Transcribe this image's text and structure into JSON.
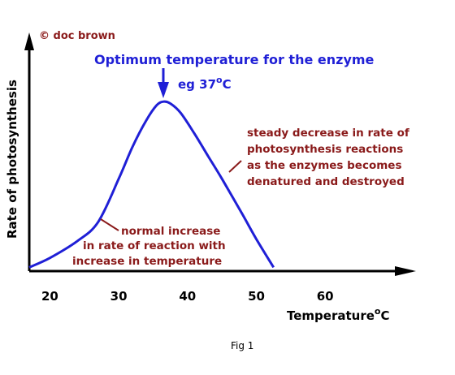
{
  "chart_data": {
    "type": "line",
    "credit": "© doc brown",
    "title": "Optimum temperature for the enzyme",
    "peak_label": "eg 37",
    "peak_label_unit": "C",
    "ylabel": "Rate of photosynthesis",
    "xlabel": "Temperature",
    "xlabel_unit": "C",
    "degree_symbol": "o",
    "x_ticks": [
      "20",
      "30",
      "40",
      "50",
      "60"
    ],
    "xlim": [
      17,
      70
    ],
    "ylim": [
      0,
      1
    ],
    "y_scale": "relative (no printed values)",
    "series": [
      {
        "color": "#1f1fd6",
        "x": [
          17,
          20,
          24,
          27,
          30,
          32,
          34,
          35.5,
          36.5,
          37.5,
          39,
          41,
          43,
          45,
          48,
          50,
          52.5
        ],
        "y": [
          0.02,
          0.07,
          0.16,
          0.26,
          0.49,
          0.66,
          0.8,
          0.88,
          0.9,
          0.89,
          0.84,
          0.73,
          0.61,
          0.49,
          0.3,
          0.17,
          0.02
        ]
      }
    ],
    "annotations": {
      "decrease": [
        "steady decrease in rate of",
        "photosynthesis reactions",
        "as the enzymes becomes",
        "denatured and destroyed"
      ],
      "increase": [
        "normal increase",
        "in rate of reaction with",
        "increase in temperature"
      ]
    },
    "caption": "Fig 1"
  }
}
